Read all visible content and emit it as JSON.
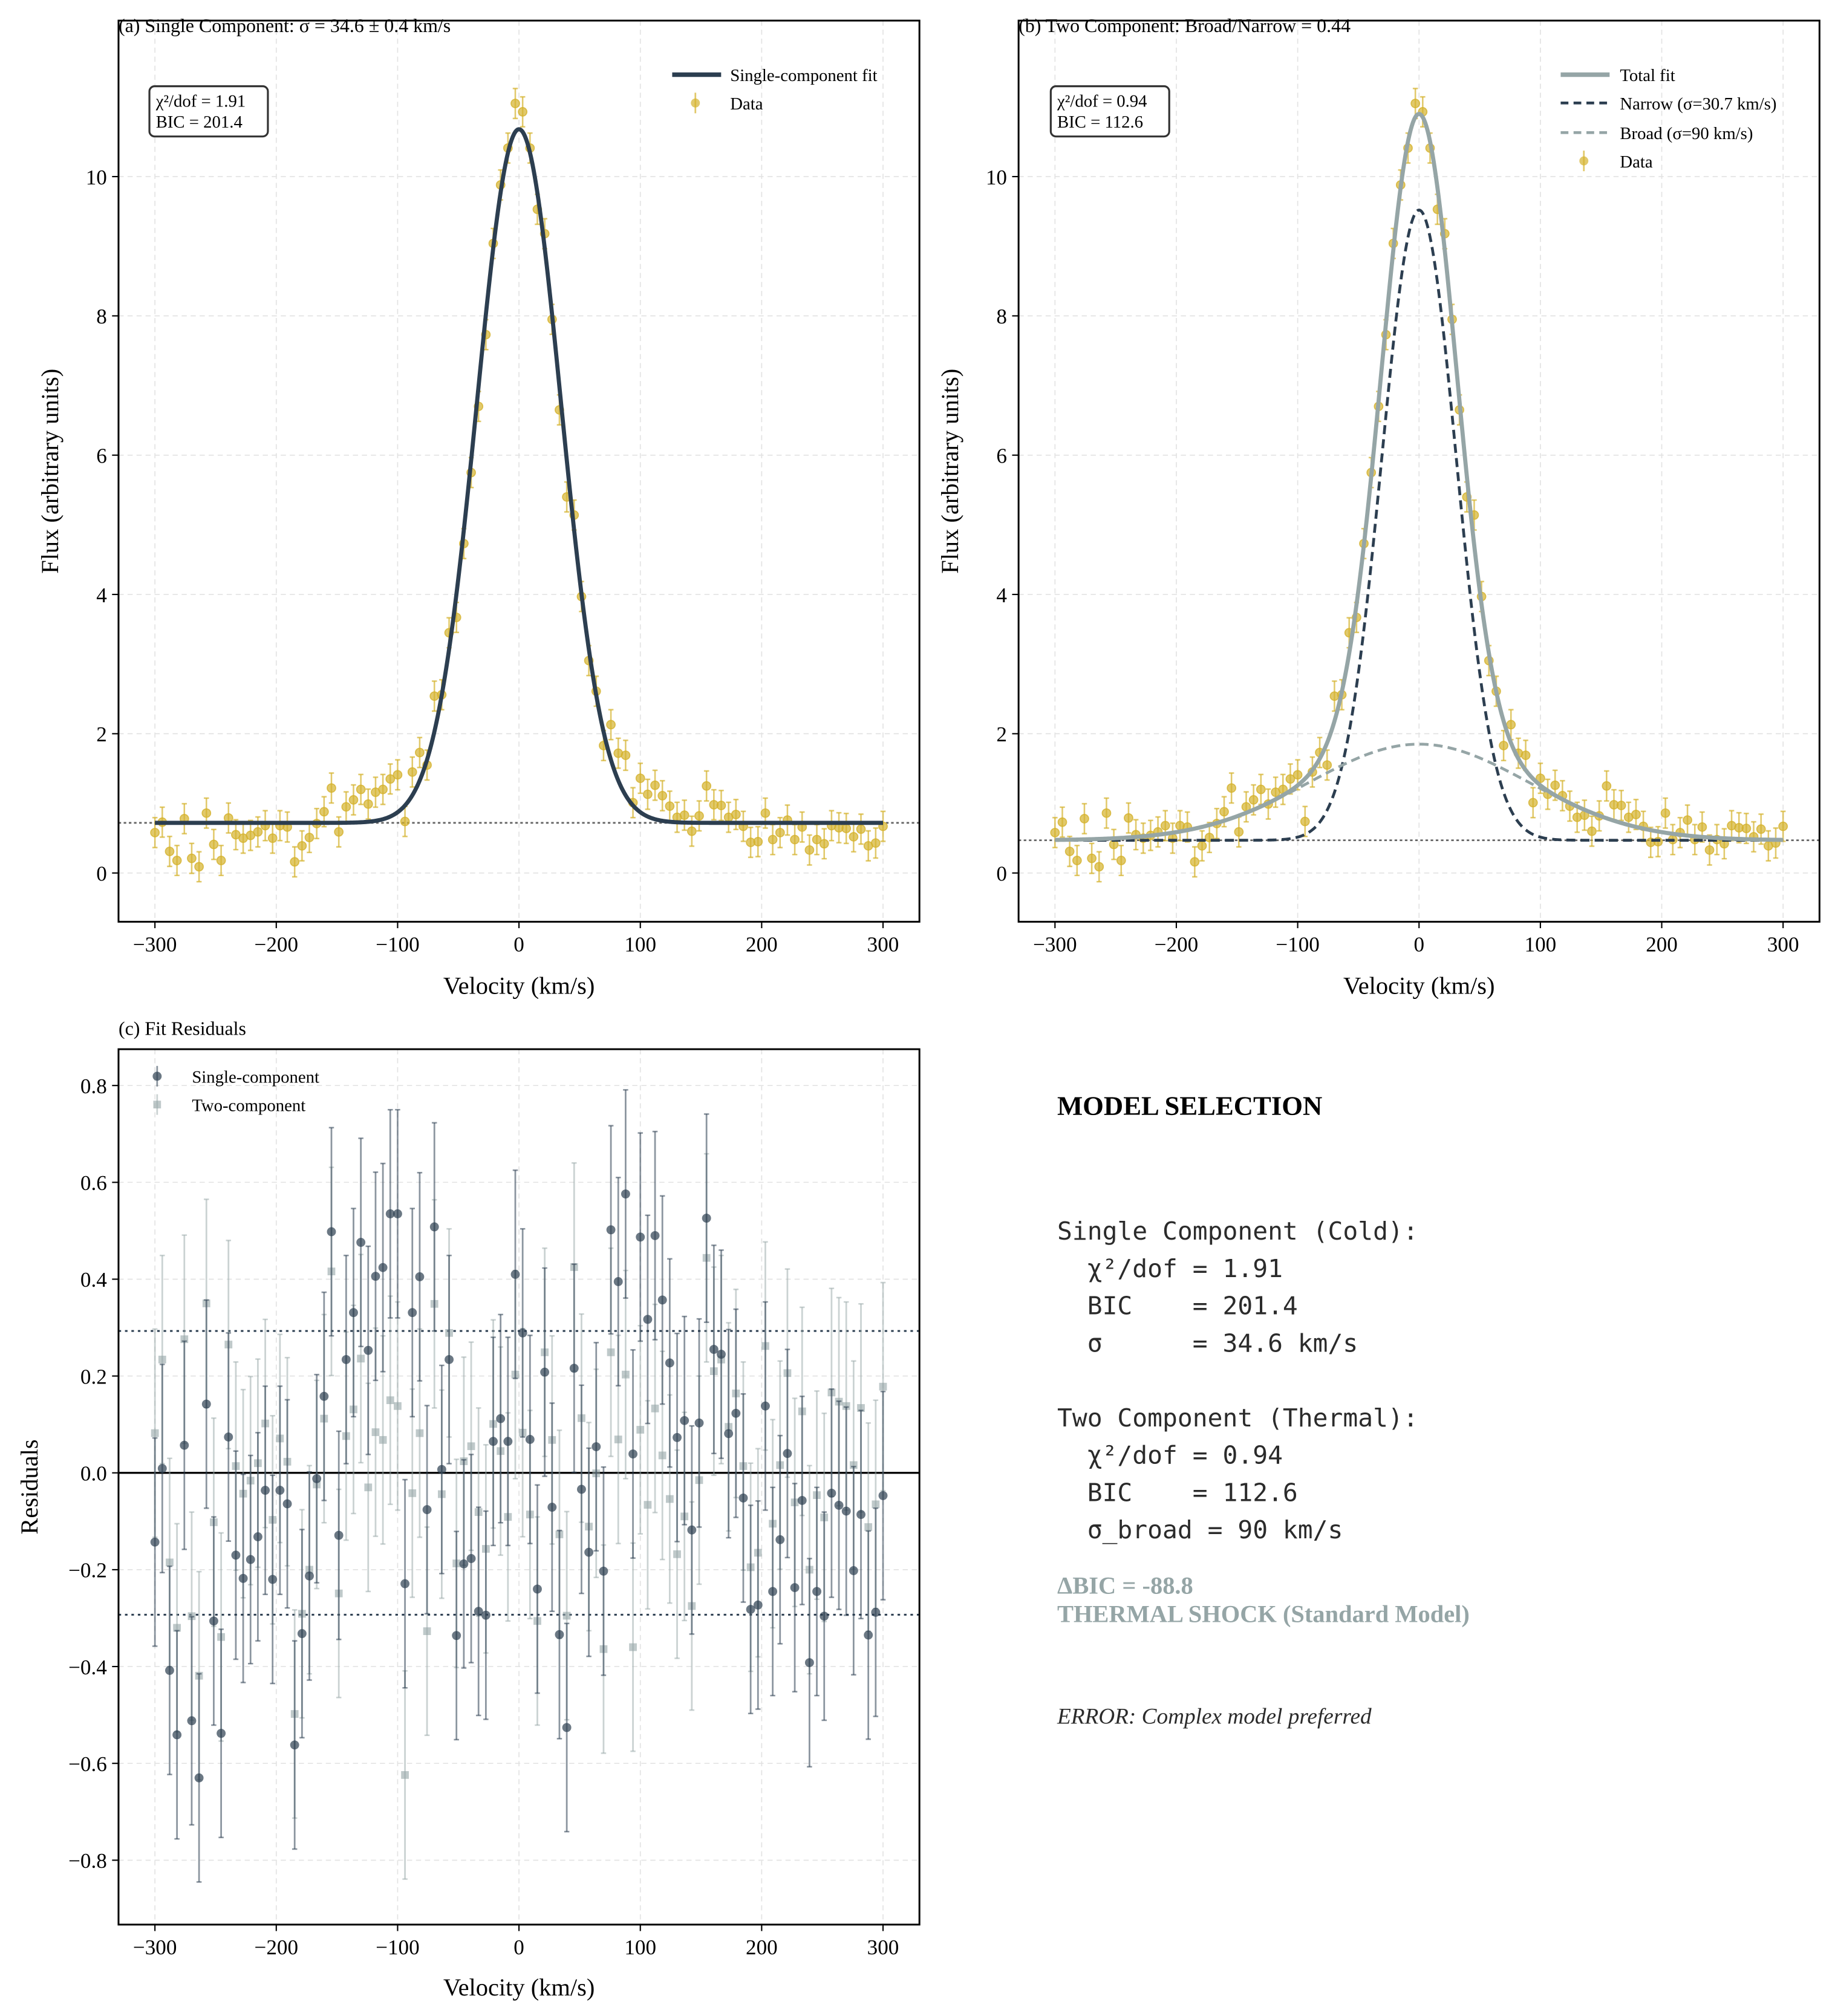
{
  "colors": {
    "data": "#d4b22c",
    "single_fit": "#2c3e50",
    "total_fit": "#95a5a6",
    "narrow": "#2c3e50",
    "broad": "#95a5a6",
    "resid_single": "#2c3e50",
    "resid_two": "#95a5a6",
    "verdict": "#95a5a6",
    "text": "#2b2b2b"
  },
  "chart_data": [
    {
      "panel": "a",
      "type": "scatter",
      "title": "(a) Single Component: σ = 34.6 ± 0.4 km/s",
      "xlabel": "Velocity (km/s)",
      "ylabel": "Flux (arbitrary units)",
      "xlim": [
        -330,
        330
      ],
      "ylim": [
        -0.7,
        12.24
      ],
      "xticks": [
        -300,
        -200,
        -100,
        0,
        100,
        200,
        300
      ],
      "xtick_labels": [
        "−300",
        "−200",
        "−100",
        "0",
        "100",
        "200",
        "300"
      ],
      "yticks": [
        0,
        2,
        4,
        6,
        8,
        10
      ],
      "ytick_labels": [
        "0",
        "2",
        "4",
        "6",
        "8",
        "10"
      ],
      "grid": true,
      "legend_position": "top-right",
      "legend": [
        {
          "label": "Single-component fit",
          "style": "solid-line",
          "color": "#2c3e50"
        },
        {
          "label": "Data",
          "style": "errorbar-marker",
          "color": "#d4b22c"
        }
      ],
      "stats_box": [
        "χ²/dof = 1.91",
        "BIC = 201.4"
      ],
      "baseline_line": 0.72,
      "models": [
        {
          "name": "Single-component fit",
          "kind": "gaussian",
          "baseline": 0.72,
          "amplitude": 9.96,
          "center": 0,
          "sigma": 34.6,
          "color": "#2c3e50",
          "dash": "solid"
        }
      ],
      "x": [
        -300.0,
        -293.94,
        -287.88,
        -281.82,
        -275.76,
        -269.7,
        -263.64,
        -257.58,
        -251.52,
        -245.45,
        -239.39,
        -233.33,
        -227.27,
        -221.21,
        -215.15,
        -209.09,
        -203.03,
        -196.97,
        -190.91,
        -184.85,
        -178.79,
        -172.73,
        -166.67,
        -160.61,
        -154.55,
        -148.48,
        -142.42,
        -136.36,
        -130.3,
        -124.24,
        -118.18,
        -112.12,
        -106.06,
        -100.0,
        -93.94,
        -87.88,
        -81.82,
        -75.76,
        -69.7,
        -63.64,
        -57.58,
        -51.52,
        -45.45,
        -39.39,
        -33.33,
        -27.27,
        -21.21,
        -15.15,
        -9.09,
        -3.03,
        3.03,
        9.09,
        15.15,
        21.21,
        27.27,
        33.33,
        39.39,
        45.45,
        51.52,
        57.58,
        63.64,
        69.7,
        75.76,
        81.82,
        87.88,
        93.94,
        100.0,
        106.06,
        112.12,
        118.18,
        124.24,
        130.3,
        136.36,
        142.42,
        148.48,
        154.55,
        160.61,
        166.67,
        172.73,
        178.79,
        184.85,
        190.91,
        196.97,
        203.03,
        209.09,
        215.15,
        221.21,
        227.27,
        233.33,
        239.39,
        245.45,
        251.52,
        257.58,
        263.64,
        269.7,
        275.76,
        281.82,
        287.88,
        293.94,
        300.0
      ],
      "y": [
        0.58,
        0.73,
        0.31,
        0.18,
        0.78,
        0.21,
        0.09,
        0.86,
        0.41,
        0.18,
        0.79,
        0.55,
        0.5,
        0.54,
        0.59,
        0.68,
        0.5,
        0.68,
        0.66,
        0.16,
        0.39,
        0.51,
        0.71,
        0.88,
        1.22,
        0.59,
        0.95,
        1.05,
        1.2,
        0.99,
        1.16,
        1.2,
        1.35,
        1.41,
        0.74,
        1.45,
        1.73,
        1.55,
        2.54,
        2.56,
        3.45,
        3.67,
        4.73,
        5.75,
        6.7,
        7.73,
        9.04,
        9.88,
        10.41,
        11.05,
        10.93,
        10.41,
        9.53,
        9.18,
        7.95,
        6.65,
        5.4,
        5.14,
        3.97,
        3.05,
        2.61,
        1.83,
        2.13,
        1.72,
        1.69,
        1.01,
        1.36,
        1.13,
        1.26,
        1.11,
        0.96,
        0.8,
        0.83,
        0.6,
        0.82,
        1.25,
        0.98,
        0.97,
        0.8,
        0.84,
        0.67,
        0.44,
        0.45,
        0.86,
        0.48,
        0.58,
        0.76,
        0.48,
        0.66,
        0.33,
        0.48,
        0.42,
        0.68,
        0.65,
        0.64,
        0.52,
        0.63,
        0.39,
        0.43,
        0.67
      ],
      "yerr": 0.215
    },
    {
      "panel": "b",
      "type": "scatter",
      "title": "(b) Two Component: Broad/Narrow = 0.44",
      "xlabel": "Velocity (km/s)",
      "ylabel": "Flux (arbitrary units)",
      "xlim": [
        -330,
        330
      ],
      "ylim": [
        -0.7,
        12.24
      ],
      "xticks": [
        -300,
        -200,
        -100,
        0,
        100,
        200,
        300
      ],
      "xtick_labels": [
        "−300",
        "−200",
        "−100",
        "0",
        "100",
        "200",
        "300"
      ],
      "yticks": [
        0,
        2,
        4,
        6,
        8,
        10
      ],
      "ytick_labels": [
        "0",
        "2",
        "4",
        "6",
        "8",
        "10"
      ],
      "grid": true,
      "legend_position": "top-right",
      "legend": [
        {
          "label": "Total fit",
          "style": "solid-line",
          "color": "#95a5a6"
        },
        {
          "label": "Narrow (σ=30.7 km/s)",
          "style": "dashed-line",
          "color": "#2c3e50"
        },
        {
          "label": "Broad (σ=90 km/s)",
          "style": "dashed-line",
          "color": "#95a5a6"
        },
        {
          "label": "Data",
          "style": "errorbar-marker",
          "color": "#d4b22c"
        }
      ],
      "stats_box": [
        "χ²/dof = 0.94",
        "BIC = 112.6"
      ],
      "baseline_line": 0.47,
      "models": [
        {
          "name": "Narrow (σ=30.7 km/s)",
          "kind": "gaussian",
          "baseline": 0.47,
          "amplitude": 9.05,
          "center": 0,
          "sigma": 30.7,
          "color": "#2c3e50",
          "dash": "dashed"
        },
        {
          "name": "Broad (σ=90 km/s)",
          "kind": "gaussian",
          "baseline": 0.47,
          "amplitude": 1.38,
          "center": 0,
          "sigma": 90,
          "color": "#95a5a6",
          "dash": "dashed"
        },
        {
          "name": "Total fit",
          "kind": "sum",
          "baseline": 0.47,
          "components": [
            {
              "amplitude": 9.05,
              "sigma": 30.7
            },
            {
              "amplitude": 1.38,
              "sigma": 90
            }
          ],
          "center": 0,
          "color": "#95a5a6",
          "dash": "solid"
        }
      ],
      "x": [
        -300.0,
        -293.94,
        -287.88,
        -281.82,
        -275.76,
        -269.7,
        -263.64,
        -257.58,
        -251.52,
        -245.45,
        -239.39,
        -233.33,
        -227.27,
        -221.21,
        -215.15,
        -209.09,
        -203.03,
        -196.97,
        -190.91,
        -184.85,
        -178.79,
        -172.73,
        -166.67,
        -160.61,
        -154.55,
        -148.48,
        -142.42,
        -136.36,
        -130.3,
        -124.24,
        -118.18,
        -112.12,
        -106.06,
        -100.0,
        -93.94,
        -87.88,
        -81.82,
        -75.76,
        -69.7,
        -63.64,
        -57.58,
        -51.52,
        -45.45,
        -39.39,
        -33.33,
        -27.27,
        -21.21,
        -15.15,
        -9.09,
        -3.03,
        3.03,
        9.09,
        15.15,
        21.21,
        27.27,
        33.33,
        39.39,
        45.45,
        51.52,
        57.58,
        63.64,
        69.7,
        75.76,
        81.82,
        87.88,
        93.94,
        100.0,
        106.06,
        112.12,
        118.18,
        124.24,
        130.3,
        136.36,
        142.42,
        148.48,
        154.55,
        160.61,
        166.67,
        172.73,
        178.79,
        184.85,
        190.91,
        196.97,
        203.03,
        209.09,
        215.15,
        221.21,
        227.27,
        233.33,
        239.39,
        245.45,
        251.52,
        257.58,
        263.64,
        269.7,
        275.76,
        281.82,
        287.88,
        293.94,
        300.0
      ],
      "y": [
        0.58,
        0.73,
        0.31,
        0.18,
        0.78,
        0.21,
        0.09,
        0.86,
        0.41,
        0.18,
        0.79,
        0.55,
        0.5,
        0.54,
        0.59,
        0.68,
        0.5,
        0.68,
        0.66,
        0.16,
        0.39,
        0.51,
        0.71,
        0.88,
        1.22,
        0.59,
        0.95,
        1.05,
        1.2,
        0.99,
        1.16,
        1.2,
        1.35,
        1.41,
        0.74,
        1.45,
        1.73,
        1.55,
        2.54,
        2.56,
        3.45,
        3.67,
        4.73,
        5.75,
        6.7,
        7.73,
        9.04,
        9.88,
        10.41,
        11.05,
        10.93,
        10.41,
        9.53,
        9.18,
        7.95,
        6.65,
        5.4,
        5.14,
        3.97,
        3.05,
        2.61,
        1.83,
        2.13,
        1.72,
        1.69,
        1.01,
        1.36,
        1.13,
        1.26,
        1.11,
        0.96,
        0.8,
        0.83,
        0.6,
        0.82,
        1.25,
        0.98,
        0.97,
        0.8,
        0.84,
        0.67,
        0.44,
        0.45,
        0.86,
        0.48,
        0.58,
        0.76,
        0.48,
        0.66,
        0.33,
        0.48,
        0.42,
        0.68,
        0.65,
        0.64,
        0.52,
        0.63,
        0.39,
        0.43,
        0.67
      ],
      "yerr": 0.215
    },
    {
      "panel": "c",
      "type": "scatter",
      "title": "(c) Fit Residuals",
      "xlabel": "Velocity (km/s)",
      "ylabel": "Residuals",
      "xlim": [
        -330,
        330
      ],
      "ylim": [
        -0.933,
        0.875
      ],
      "xticks": [
        -300,
        -200,
        -100,
        0,
        100,
        200,
        300
      ],
      "xtick_labels": [
        "−300",
        "−200",
        "−100",
        "0",
        "100",
        "200",
        "300"
      ],
      "yticks": [
        -0.8,
        -0.6,
        -0.4,
        -0.2,
        0.0,
        0.2,
        0.4,
        0.6,
        0.8
      ],
      "ytick_labels": [
        "−0.8",
        "−0.6",
        "−0.4",
        "−0.2",
        "0.0",
        "0.2",
        "0.4",
        "0.6",
        "0.8"
      ],
      "grid": true,
      "legend_position": "top-left",
      "zero_line": 0,
      "reference_lines": [
        0.293,
        -0.293
      ],
      "x": [
        -300.0,
        -293.94,
        -287.88,
        -281.82,
        -275.76,
        -269.7,
        -263.64,
        -257.58,
        -251.52,
        -245.45,
        -239.39,
        -233.33,
        -227.27,
        -221.21,
        -215.15,
        -209.09,
        -203.03,
        -196.97,
        -190.91,
        -184.85,
        -178.79,
        -172.73,
        -166.67,
        -160.61,
        -154.55,
        -148.48,
        -142.42,
        -136.36,
        -130.3,
        -124.24,
        -118.18,
        -112.12,
        -106.06,
        -100.0,
        -93.94,
        -87.88,
        -81.82,
        -75.76,
        -69.7,
        -63.64,
        -57.58,
        -51.52,
        -45.45,
        -39.39,
        -33.33,
        -27.27,
        -21.21,
        -15.15,
        -9.09,
        -3.03,
        3.03,
        9.09,
        15.15,
        21.21,
        27.27,
        33.33,
        39.39,
        45.45,
        51.52,
        57.58,
        63.64,
        69.7,
        75.76,
        81.82,
        87.88,
        93.94,
        100.0,
        106.06,
        112.12,
        118.18,
        124.24,
        130.3,
        136.36,
        142.42,
        148.48,
        154.55,
        160.61,
        166.67,
        172.73,
        178.79,
        184.85,
        190.91,
        196.97,
        203.03,
        209.09,
        215.15,
        221.21,
        227.27,
        233.33,
        239.39,
        245.45,
        251.52,
        257.58,
        263.64,
        269.7,
        275.76,
        281.82,
        287.88,
        293.94,
        300.0
      ],
      "series": [
        {
          "name": "Single-component",
          "marker": "circle",
          "color": "#2c3e50",
          "yerr": 0.215,
          "values": [
            -0.143,
            0.009,
            -0.408,
            -0.541,
            0.057,
            -0.512,
            -0.63,
            0.142,
            -0.306,
            -0.538,
            0.074,
            -0.17,
            -0.218,
            -0.179,
            -0.132,
            -0.036,
            -0.22,
            -0.036,
            -0.064,
            -0.562,
            -0.332,
            -0.213,
            -0.012,
            0.158,
            0.498,
            -0.129,
            0.234,
            0.331,
            0.476,
            0.253,
            0.406,
            0.424,
            0.535,
            0.535,
            -0.229,
            0.331,
            0.405,
            -0.076,
            0.508,
            0.007,
            0.234,
            -0.336,
            -0.188,
            -0.177,
            -0.286,
            -0.294,
            0.065,
            0.112,
            0.065,
            0.41,
            0.289,
            0.069,
            -0.24,
            0.208,
            -0.071,
            -0.334,
            -0.526,
            0.216,
            -0.034,
            -0.164,
            0.054,
            -0.203,
            0.502,
            0.395,
            0.576,
            0.039,
            0.487,
            0.317,
            0.49,
            0.357,
            0.227,
            0.073,
            0.108,
            -0.118,
            0.103,
            0.526,
            0.255,
            0.245,
            0.081,
            0.123,
            -0.052,
            -0.282,
            -0.273,
            0.138,
            -0.245,
            -0.138,
            0.04,
            -0.237,
            -0.057,
            -0.392,
            -0.245,
            -0.296,
            -0.042,
            -0.067,
            -0.079,
            -0.202,
            -0.086,
            -0.335,
            -0.288,
            -0.047
          ]
        },
        {
          "name": "Two-component",
          "marker": "square",
          "color": "#95a5a6",
          "yerr": 0.215,
          "values": [
            0.082,
            0.234,
            -0.185,
            -0.32,
            0.276,
            -0.296,
            -0.419,
            0.35,
            -0.102,
            -0.339,
            0.265,
            0.014,
            -0.043,
            -0.016,
            0.02,
            0.102,
            -0.097,
            0.071,
            0.023,
            -0.498,
            -0.291,
            -0.2,
            -0.024,
            0.112,
            0.416,
            -0.249,
            0.076,
            0.131,
            0.236,
            -0.03,
            0.084,
            0.068,
            0.15,
            0.138,
            -0.624,
            -0.042,
            0.082,
            -0.327,
            0.349,
            -0.044,
            0.289,
            -0.187,
            0.024,
            0.055,
            -0.081,
            -0.157,
            0.101,
            0.045,
            -0.091,
            0.203,
            0.083,
            -0.086,
            -0.306,
            0.249,
            0.068,
            -0.127,
            -0.295,
            0.425,
            0.113,
            -0.111,
            -0.001,
            -0.364,
            0.249,
            0.069,
            0.203,
            -0.36,
            0.089,
            -0.066,
            0.133,
            0.036,
            -0.054,
            -0.168,
            -0.09,
            -0.275,
            -0.015,
            0.444,
            0.21,
            0.234,
            0.095,
            0.164,
            0.014,
            -0.195,
            -0.165,
            0.262,
            -0.105,
            0.016,
            0.206,
            -0.061,
            0.127,
            -0.2,
            -0.046,
            -0.092,
            0.166,
            0.147,
            0.138,
            0.016,
            0.134,
            -0.112,
            -0.065,
            0.178
          ]
        }
      ]
    }
  ],
  "model_selection": {
    "heading": "MODEL SELECTION",
    "single_header": "Single Component (Cold):",
    "single_lines": [
      "  χ²/dof = 1.91",
      "  BIC    = 201.4",
      "  σ      = 34.6 km/s"
    ],
    "two_header": "Two Component (Thermal):",
    "two_lines": [
      "  χ²/dof = 0.94",
      "  BIC    = 112.6",
      "  σ_broad = 90 km/s"
    ],
    "delta_bic": "ΔBIC = -88.8",
    "verdict": "THERMAL SHOCK (Standard Model)",
    "note": "ERROR: Complex model preferred"
  }
}
